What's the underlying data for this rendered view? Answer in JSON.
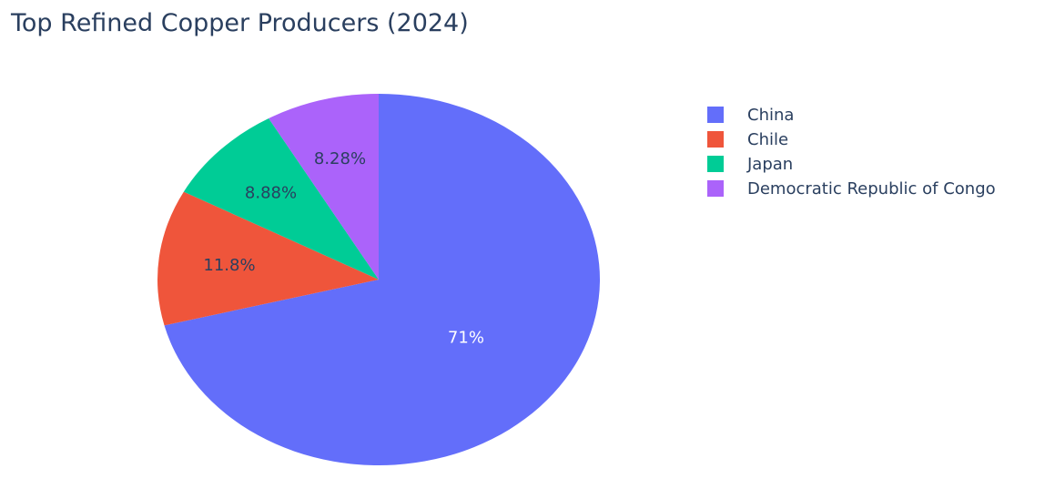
{
  "chart_data": {
    "type": "pie",
    "title": "Top Refined Copper Producers (2024)",
    "labels": [
      "China",
      "Chile",
      "Japan",
      "Democratic Republic of Congo"
    ],
    "values": [
      71.0,
      11.8,
      8.88,
      8.28
    ],
    "percent_labels": [
      "71%",
      "11.8%",
      "8.88%",
      "8.28%"
    ],
    "colors": [
      "#636efa",
      "#ef553b",
      "#00cc96",
      "#ab63fa"
    ],
    "direction": "clockwise",
    "start": "top",
    "legend_position": "top-right"
  }
}
